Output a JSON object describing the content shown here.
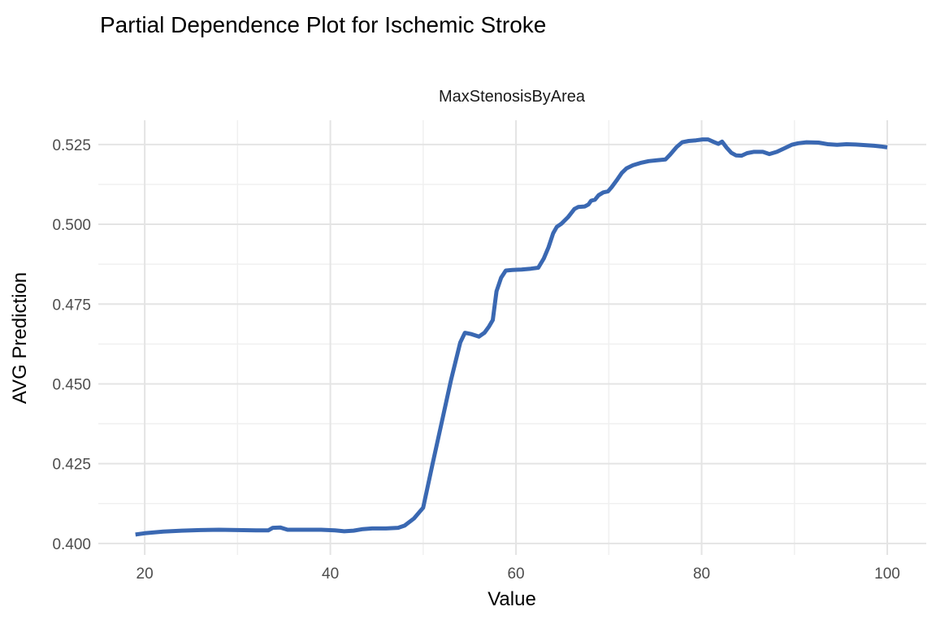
{
  "title": "Partial Dependence Plot for Ischemic Stroke",
  "facet_label": "MaxStenosisByArea",
  "colors": {
    "background": "#FFFFFF",
    "line": "#3A68B2",
    "grid_major": "#E4E4E4",
    "grid_minor": "#F0F0F0",
    "tick_text": "#4D4D4D",
    "title_text": "#000000"
  },
  "chart_data": {
    "type": "line",
    "title": "Partial Dependence Plot for Ischemic Stroke",
    "facet": "MaxStenosisByArea",
    "xlabel": "Value",
    "ylabel": "AVG Prediction",
    "xlim": [
      15.0,
      104.2
    ],
    "ylim": [
      0.3964,
      0.5326
    ],
    "x_ticks": [
      20,
      40,
      60,
      80,
      100
    ],
    "x_minor_ticks": [
      30,
      50,
      70,
      90
    ],
    "y_ticks": [
      0.4,
      0.425,
      0.45,
      0.475,
      0.5,
      0.525
    ],
    "y_tick_labels": [
      "0.400",
      "0.425",
      "0.450",
      "0.475",
      "0.500",
      "0.525"
    ],
    "y_minor_ticks": [
      0.4125,
      0.4375,
      0.4625,
      0.4875,
      0.5125
    ],
    "grid": true,
    "legend": false,
    "series": [
      {
        "name": "MaxStenosisByArea",
        "color": "#3A68B2",
        "points": [
          [
            19,
            0.4028
          ],
          [
            20,
            0.4032
          ],
          [
            22,
            0.4037
          ],
          [
            24,
            0.404
          ],
          [
            26,
            0.4042
          ],
          [
            28,
            0.4043
          ],
          [
            30,
            0.4042
          ],
          [
            32,
            0.4041
          ],
          [
            33.3,
            0.4041
          ],
          [
            33.8,
            0.4049
          ],
          [
            34.6,
            0.405
          ],
          [
            35.4,
            0.4043
          ],
          [
            37,
            0.4043
          ],
          [
            39,
            0.4043
          ],
          [
            40.5,
            0.4041
          ],
          [
            41.5,
            0.4038
          ],
          [
            42.5,
            0.404
          ],
          [
            43.5,
            0.4045
          ],
          [
            44.5,
            0.4047
          ],
          [
            46,
            0.4047
          ],
          [
            47.3,
            0.4049
          ],
          [
            48,
            0.4056
          ],
          [
            49,
            0.4078
          ],
          [
            50,
            0.4112
          ],
          [
            51,
            0.4248
          ],
          [
            52,
            0.438
          ],
          [
            53,
            0.4512
          ],
          [
            54,
            0.463
          ],
          [
            54.5,
            0.466
          ],
          [
            55.2,
            0.4656
          ],
          [
            56,
            0.4648
          ],
          [
            56.6,
            0.466
          ],
          [
            57.1,
            0.468
          ],
          [
            57.5,
            0.47
          ],
          [
            57.9,
            0.479
          ],
          [
            58.4,
            0.4833
          ],
          [
            58.9,
            0.4855
          ],
          [
            59.6,
            0.4857
          ],
          [
            60.6,
            0.4858
          ],
          [
            61.6,
            0.4861
          ],
          [
            62.4,
            0.4864
          ],
          [
            63,
            0.4893
          ],
          [
            63.5,
            0.4928
          ],
          [
            64,
            0.4972
          ],
          [
            64.4,
            0.4992
          ],
          [
            64.9,
            0.5002
          ],
          [
            65.6,
            0.5022
          ],
          [
            66.3,
            0.5048
          ],
          [
            66.7,
            0.5054
          ],
          [
            67.4,
            0.5056
          ],
          [
            67.8,
            0.5062
          ],
          [
            68.1,
            0.5074
          ],
          [
            68.5,
            0.5077
          ],
          [
            68.9,
            0.5091
          ],
          [
            69.4,
            0.51
          ],
          [
            69.9,
            0.5103
          ],
          [
            70.3,
            0.5116
          ],
          [
            70.9,
            0.514
          ],
          [
            71.4,
            0.5161
          ],
          [
            71.9,
            0.5175
          ],
          [
            72.6,
            0.5185
          ],
          [
            73.4,
            0.5192
          ],
          [
            74.3,
            0.5198
          ],
          [
            75.3,
            0.5201
          ],
          [
            76.1,
            0.5203
          ],
          [
            76.6,
            0.5218
          ],
          [
            77.3,
            0.5242
          ],
          [
            77.9,
            0.5257
          ],
          [
            78.6,
            0.5261
          ],
          [
            79.4,
            0.5263
          ],
          [
            80.1,
            0.5266
          ],
          [
            80.7,
            0.5266
          ],
          [
            81.3,
            0.5258
          ],
          [
            81.8,
            0.5252
          ],
          [
            82.2,
            0.5259
          ],
          [
            82.7,
            0.524
          ],
          [
            83.2,
            0.5224
          ],
          [
            83.7,
            0.5216
          ],
          [
            84.3,
            0.5215
          ],
          [
            84.9,
            0.5223
          ],
          [
            85.6,
            0.5227
          ],
          [
            86.6,
            0.5227
          ],
          [
            87.3,
            0.522
          ],
          [
            88.1,
            0.5227
          ],
          [
            88.9,
            0.5238
          ],
          [
            89.7,
            0.5249
          ],
          [
            90.4,
            0.5254
          ],
          [
            91.3,
            0.5257
          ],
          [
            92.6,
            0.5256
          ],
          [
            93.6,
            0.5251
          ],
          [
            94.6,
            0.5249
          ],
          [
            95.6,
            0.5251
          ],
          [
            96.6,
            0.525
          ],
          [
            97.6,
            0.5248
          ],
          [
            98.6,
            0.5246
          ],
          [
            99.3,
            0.5244
          ],
          [
            100,
            0.5241
          ]
        ]
      }
    ]
  }
}
